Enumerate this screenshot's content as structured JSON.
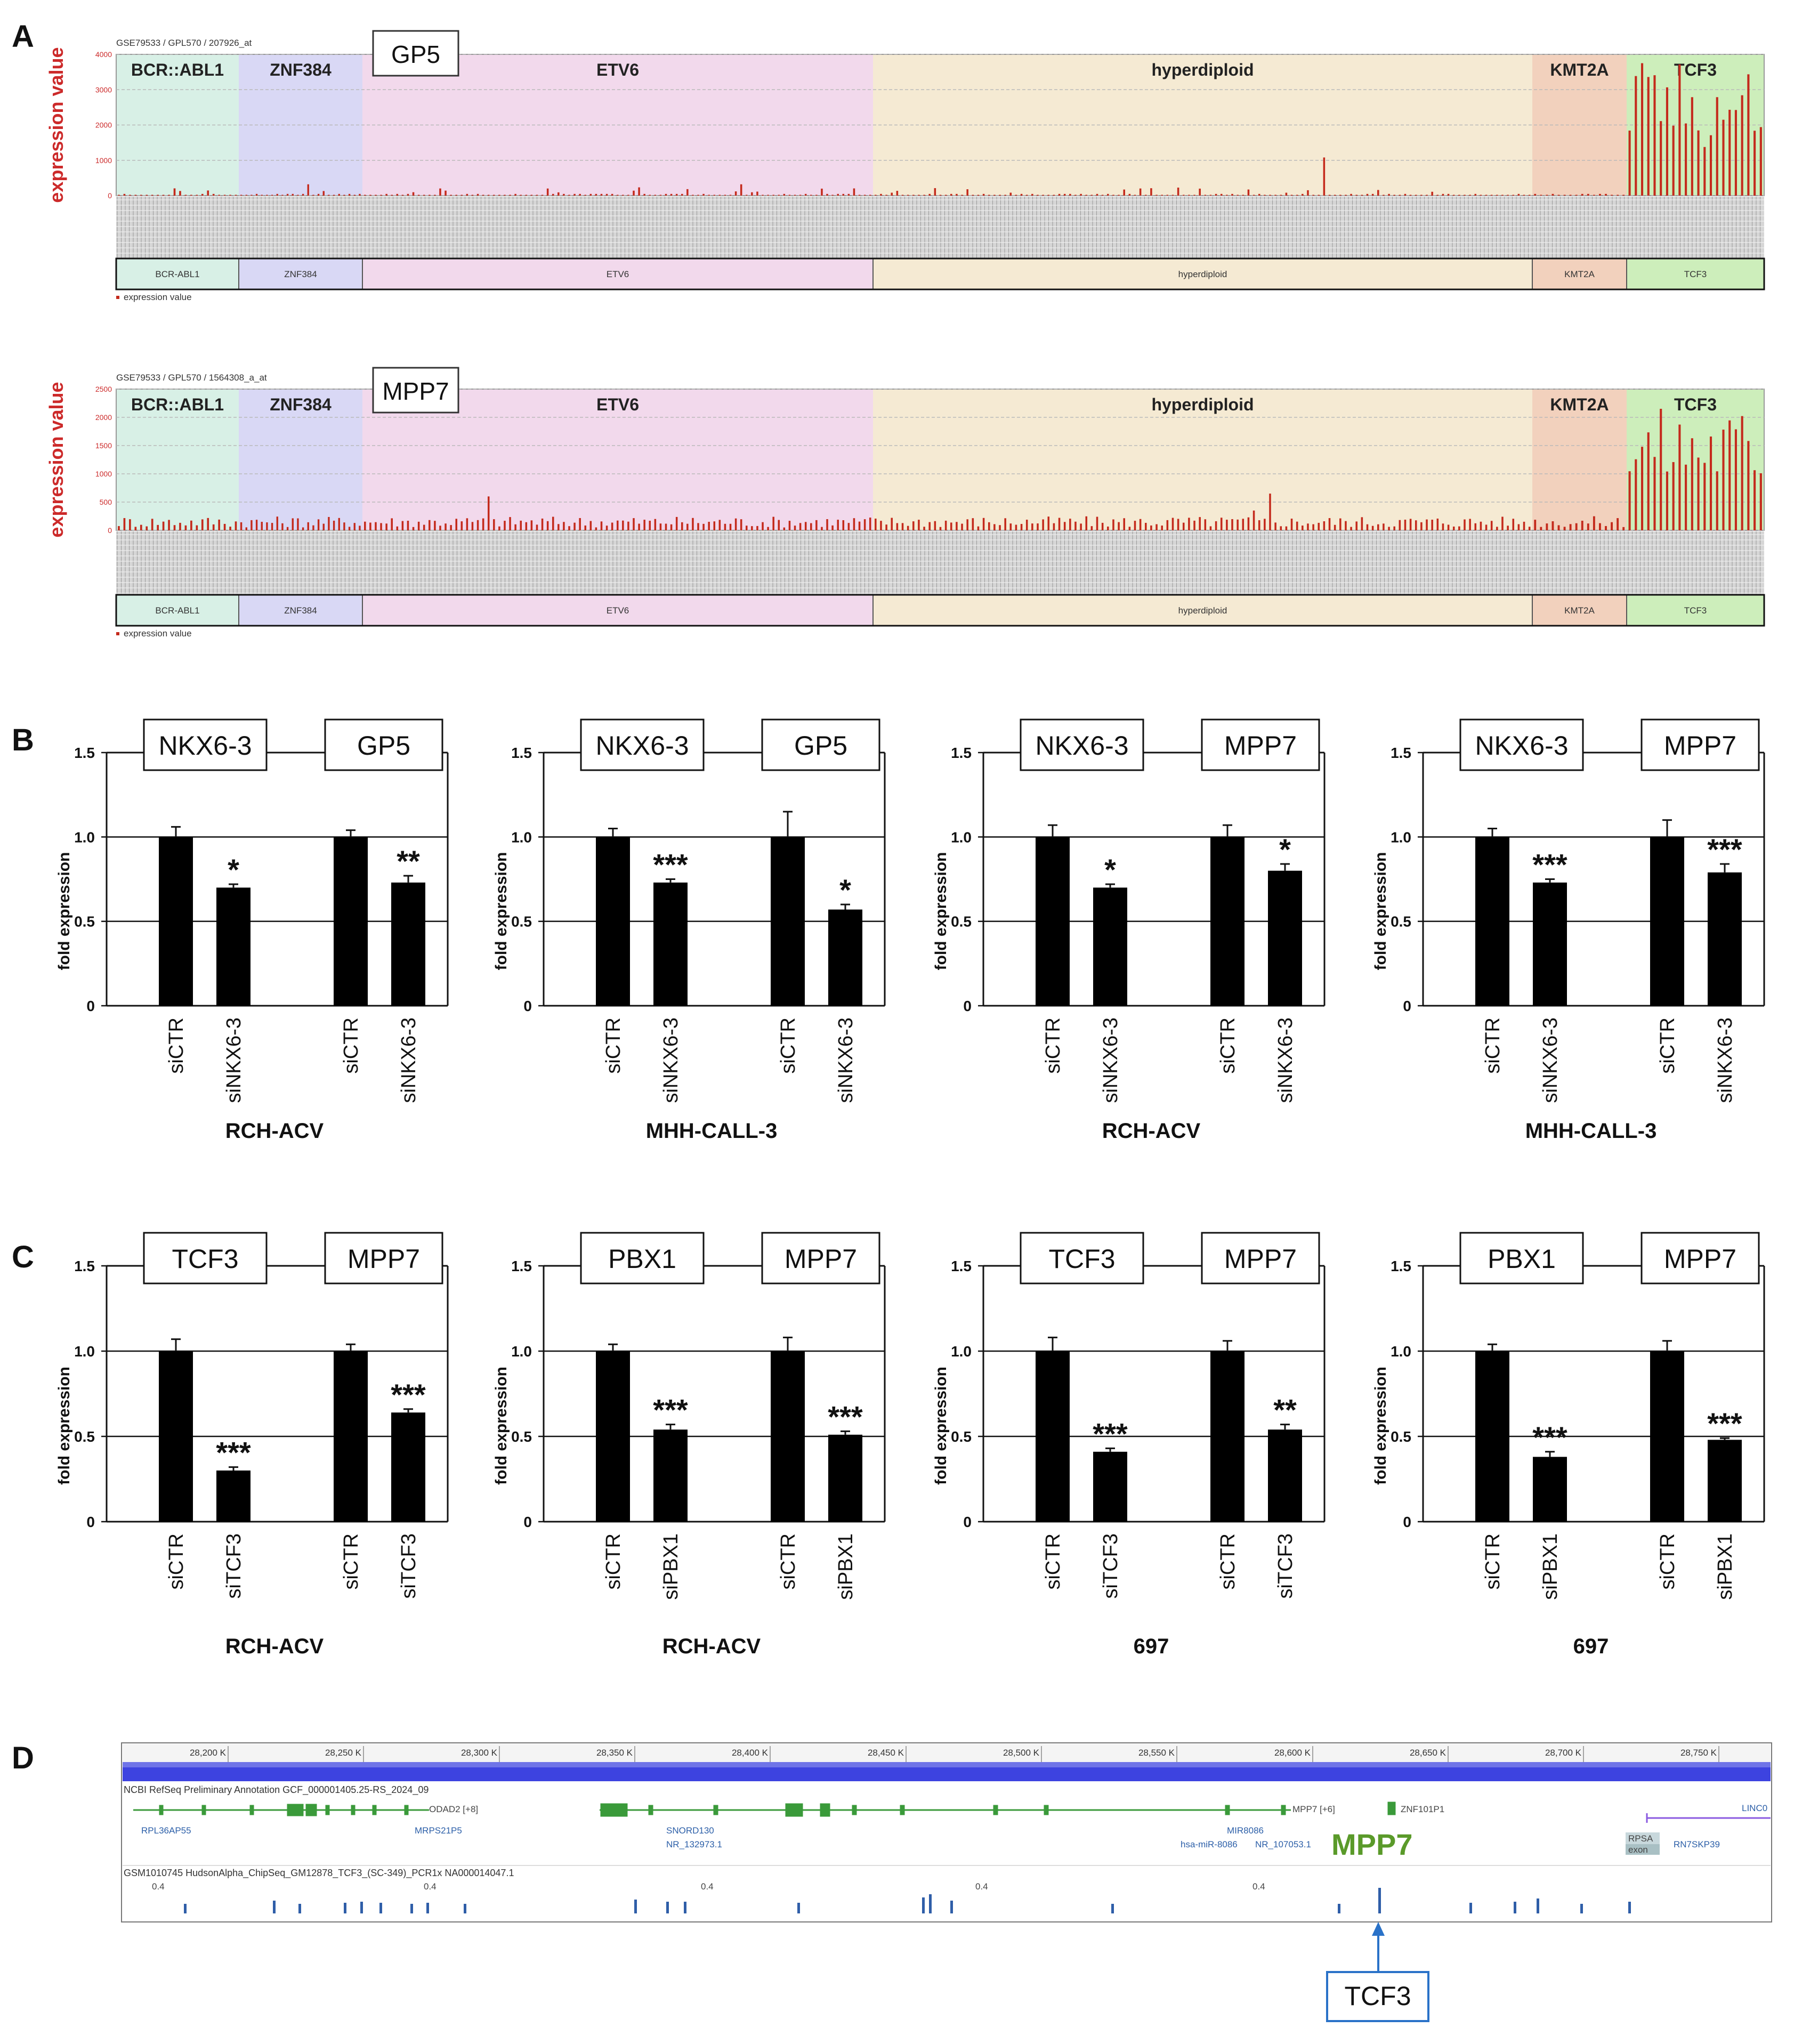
{
  "figure": {
    "panel_letters": [
      "A",
      "B",
      "C",
      "D"
    ]
  },
  "panel_a": {
    "groups": [
      "BCR::ABL1",
      "ZNF384",
      "ETV6",
      "hyperdiploid",
      "KMT2A",
      "TCF3"
    ],
    "strip_labels": [
      "BCR-ABL1",
      "ZNF384",
      "ETV6",
      "hyperdiploid",
      "KMT2A",
      "TCF3"
    ],
    "group_colors": [
      "#d8f0e6",
      "#d9d8f5",
      "#f2d9ec",
      "#f5ead3",
      "#f2d1bd",
      "#cdeebb"
    ],
    "y_label": "expression value",
    "legend": "expression value",
    "bar_color": "#c42a1c",
    "charts": [
      {
        "source": "GSE79533 / GPL570 / 207926_at",
        "gene": "GP5",
        "y_ticks": [
          "4000",
          "3000",
          "2000",
          "1000",
          "0"
        ]
      },
      {
        "source": "GSE79533 / GPL570 / 1564308_a_at",
        "gene": "MPP7",
        "y_ticks": [
          "2500",
          "2000",
          "1500",
          "1000",
          "500",
          "0"
        ]
      }
    ]
  },
  "panel_bc": {
    "y_label": "fold expression",
    "y_ticks": [
      "1.5",
      "1.0",
      "0.5",
      "0"
    ]
  },
  "chart_data": [
    {
      "type": "bar",
      "panel": "B",
      "title": "",
      "xlabel": "RCH-ACV",
      "ylabel": "fold expression",
      "ylim": [
        0,
        1.5
      ],
      "knockdown_gene": "NKX6-3",
      "target_gene": "GP5",
      "categories": [
        "siCTR",
        "siNKX6-3",
        "siCTR",
        "siNKX6-3"
      ],
      "values": [
        1.0,
        0.7,
        1.0,
        0.73
      ],
      "errors": [
        0.06,
        0.02,
        0.04,
        0.04
      ],
      "significance": [
        "",
        "*",
        "",
        "**"
      ]
    },
    {
      "type": "bar",
      "panel": "B",
      "title": "",
      "xlabel": "MHH-CALL-3",
      "ylabel": "fold expression",
      "ylim": [
        0,
        1.5
      ],
      "knockdown_gene": "NKX6-3",
      "target_gene": "GP5",
      "categories": [
        "siCTR",
        "siNKX6-3",
        "siCTR",
        "siNKX6-3"
      ],
      "values": [
        1.0,
        0.73,
        1.0,
        0.57
      ],
      "errors": [
        0.05,
        0.02,
        0.15,
        0.03
      ],
      "significance": [
        "",
        "***",
        "",
        "*"
      ]
    },
    {
      "type": "bar",
      "panel": "B",
      "title": "",
      "xlabel": "RCH-ACV",
      "ylabel": "fold expression",
      "ylim": [
        0,
        1.5
      ],
      "knockdown_gene": "NKX6-3",
      "target_gene": "MPP7",
      "categories": [
        "siCTR",
        "siNKX6-3",
        "siCTR",
        "siNKX6-3"
      ],
      "values": [
        1.0,
        0.7,
        1.0,
        0.8
      ],
      "errors": [
        0.07,
        0.02,
        0.07,
        0.04
      ],
      "significance": [
        "",
        "*",
        "",
        "*"
      ]
    },
    {
      "type": "bar",
      "panel": "B",
      "title": "",
      "xlabel": "MHH-CALL-3",
      "ylabel": "fold expression",
      "ylim": [
        0,
        1.5
      ],
      "knockdown_gene": "NKX6-3",
      "target_gene": "MPP7",
      "categories": [
        "siCTR",
        "siNKX6-3",
        "siCTR",
        "siNKX6-3"
      ],
      "values": [
        1.0,
        0.73,
        1.0,
        0.79
      ],
      "errors": [
        0.05,
        0.02,
        0.1,
        0.05
      ],
      "significance": [
        "",
        "***",
        "",
        "***"
      ]
    },
    {
      "type": "bar",
      "panel": "C",
      "title": "",
      "xlabel": "RCH-ACV",
      "ylabel": "fold expression",
      "ylim": [
        0,
        1.5
      ],
      "knockdown_gene": "TCF3",
      "target_gene": "MPP7",
      "categories": [
        "siCTR",
        "siTCF3",
        "siCTR",
        "siTCF3"
      ],
      "values": [
        1.0,
        0.3,
        1.0,
        0.64
      ],
      "errors": [
        0.07,
        0.02,
        0.04,
        0.02
      ],
      "significance": [
        "",
        "***",
        "",
        "***"
      ]
    },
    {
      "type": "bar",
      "panel": "C",
      "title": "",
      "xlabel": "RCH-ACV",
      "ylabel": "fold expression",
      "ylim": [
        0,
        1.5
      ],
      "knockdown_gene": "PBX1",
      "target_gene": "MPP7",
      "categories": [
        "siCTR",
        "siPBX1",
        "siCTR",
        "siPBX1"
      ],
      "values": [
        1.0,
        0.54,
        1.0,
        0.51
      ],
      "errors": [
        0.04,
        0.03,
        0.08,
        0.02
      ],
      "significance": [
        "",
        "***",
        "",
        "***"
      ]
    },
    {
      "type": "bar",
      "panel": "C",
      "title": "",
      "xlabel": "697",
      "ylabel": "fold expression",
      "ylim": [
        0,
        1.5
      ],
      "knockdown_gene": "TCF3",
      "target_gene": "MPP7",
      "categories": [
        "siCTR",
        "siTCF3",
        "siCTR",
        "siTCF3"
      ],
      "values": [
        1.0,
        0.41,
        1.0,
        0.54
      ],
      "errors": [
        0.08,
        0.02,
        0.06,
        0.03
      ],
      "significance": [
        "",
        "***",
        "",
        "**"
      ]
    },
    {
      "type": "bar",
      "panel": "C",
      "title": "",
      "xlabel": "697",
      "ylabel": "fold expression",
      "ylim": [
        0,
        1.5
      ],
      "knockdown_gene": "PBX1",
      "target_gene": "MPP7",
      "categories": [
        "siCTR",
        "siPBX1",
        "siCTR",
        "siPBX1"
      ],
      "values": [
        1.0,
        0.38,
        1.0,
        0.48
      ],
      "errors": [
        0.04,
        0.03,
        0.06,
        0.01
      ],
      "significance": [
        "",
        "***",
        "",
        "***"
      ]
    }
  ],
  "panel_d": {
    "axis_ticks": [
      "28,200 K",
      "28,250 K",
      "28,300 K",
      "28,350 K",
      "28,400 K",
      "28,450 K",
      "28,500 K",
      "28,550 K",
      "28,600 K",
      "28,650 K",
      "28,700 K",
      "28,750 K"
    ],
    "annotation_track": "NCBI RefSeq Preliminary Annotation GCF_000001405.25-RS_2024_09",
    "chip_track": "GSM1010745 HudsonAlpha_ChipSeq_GM12878_TCF3_(SC-349)_PCR1x NA000014047.1",
    "gene_labels": {
      "rpl36ap55": "RPL36AP55",
      "mrps21p5": "MRPS21P5",
      "odad2": "ODAD2 [+8]",
      "snord130": "SNORD130",
      "nr_132973": "NR_132973.1",
      "mir8086": "MIR8086",
      "hsa_mir_8086": "hsa-miR-8086",
      "nr_107053": "NR_107053.1",
      "mpp7_small": "MPP7 [+6]",
      "znf101p1": "ZNF101P1",
      "rpsa": "RPSA",
      "exon": "exon",
      "rn7skp39": "RN7SKP39",
      "linc": "LINC0"
    },
    "peak_scale": [
      "0.4",
      "0.4",
      "0.4",
      "0.4",
      "0.4"
    ],
    "gene_highlight": "MPP7",
    "factor_label": "TCF3"
  }
}
